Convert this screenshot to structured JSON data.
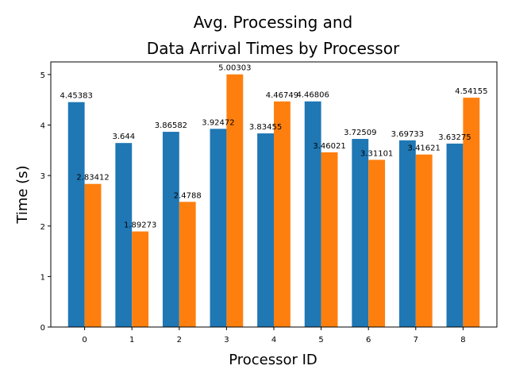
{
  "chart_data": {
    "type": "bar",
    "title_lines": [
      "Avg. Processing and",
      "Data Arrival Times by Processor"
    ],
    "xlabel": "Processor ID",
    "ylabel": "Time (s)",
    "categories": [
      "0",
      "1",
      "2",
      "3",
      "4",
      "5",
      "6",
      "7",
      "8"
    ],
    "ylim": [
      0,
      5.25
    ],
    "yticks": [
      "0",
      "1",
      "2",
      "3",
      "4",
      "5"
    ],
    "grid": false,
    "series": [
      {
        "color": "#1f77b4",
        "values": [
          4.45383,
          3.644,
          3.86582,
          3.92472,
          3.83455,
          4.46806,
          3.72509,
          3.69733,
          3.63275
        ],
        "labels": [
          "4.45383",
          "3.644",
          "3.86582",
          "3.92472",
          "3.83455",
          "4.46806",
          "3.72509",
          "3.69733",
          "3.63275"
        ]
      },
      {
        "color": "#ff7f0e",
        "values": [
          2.83412,
          1.89273,
          2.4788,
          5.00303,
          4.46749,
          3.46021,
          3.31101,
          3.41621,
          4.54155
        ],
        "labels": [
          "2.83412",
          "1.89273",
          "2.4788",
          "5.00303",
          "4.46749",
          "3.46021",
          "3.31101",
          "3.41621",
          "4.54155"
        ]
      }
    ]
  }
}
